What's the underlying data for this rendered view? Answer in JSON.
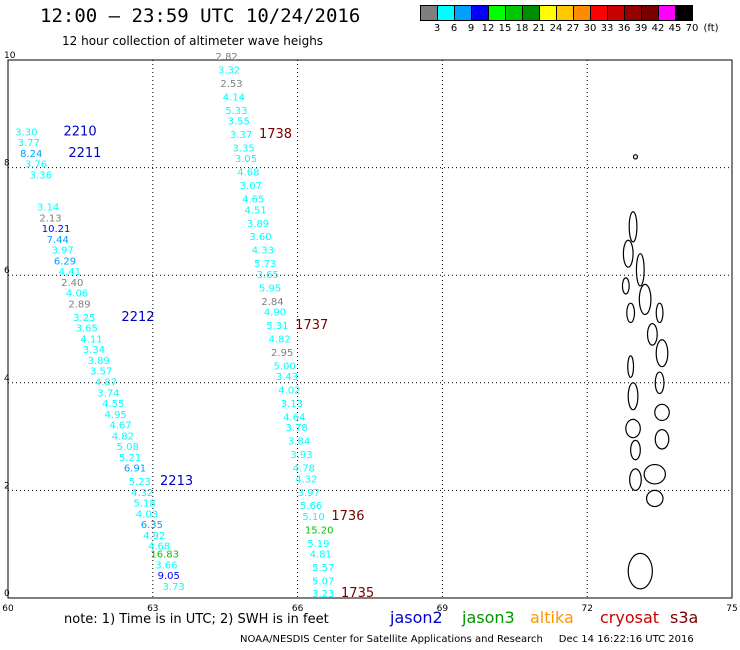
{
  "header": {
    "title": "12:00 – 23:59 UTC 10/24/2016",
    "subtitle": "12 hour collection of altimeter wave heighs"
  },
  "legend": {
    "unit": "(ft)",
    "items": [
      {
        "label": "3",
        "color": "#7f7f7f"
      },
      {
        "label": "6",
        "color": "#00ffff"
      },
      {
        "label": "9",
        "color": "#00a0ff"
      },
      {
        "label": "12",
        "color": "#0000ff"
      },
      {
        "label": "15",
        "color": "#00ff00"
      },
      {
        "label": "18",
        "color": "#00c800"
      },
      {
        "label": "21",
        "color": "#008c00"
      },
      {
        "label": "24",
        "color": "#ffff00"
      },
      {
        "label": "27",
        "color": "#ffc800"
      },
      {
        "label": "30",
        "color": "#ff8c00"
      },
      {
        "label": "33",
        "color": "#ff0000"
      },
      {
        "label": "36",
        "color": "#c80000"
      },
      {
        "label": "39",
        "color": "#960000"
      },
      {
        "label": "42",
        "color": "#780000"
      },
      {
        "label": "45",
        "color": "#ff00ff"
      },
      {
        "label": "70",
        "color": "#000000"
      }
    ]
  },
  "chart_data": {
    "type": "scatter",
    "xlim": [
      60,
      75
    ],
    "ylim": [
      0,
      10
    ],
    "xticks": [
      "60",
      "63",
      "66",
      "69",
      "72",
      "75"
    ],
    "yticks": [
      "0",
      "2",
      "4",
      "6",
      "8",
      "10"
    ],
    "grid": true,
    "passes": [
      {
        "label": "2210",
        "color": "#0000c8",
        "lon": 61.15,
        "lat": 8.6
      },
      {
        "label": "2211",
        "color": "#0000c8",
        "lon": 61.25,
        "lat": 8.2
      },
      {
        "label": "2212",
        "color": "#0000c8",
        "lon": 62.35,
        "lat": 5.15
      },
      {
        "label": "2213",
        "color": "#0000c8",
        "lon": 63.15,
        "lat": 2.1
      },
      {
        "label": "1738",
        "color": "#780000",
        "lon": 65.2,
        "lat": 8.55
      },
      {
        "label": "1737",
        "color": "#780000",
        "lon": 65.95,
        "lat": 5.0
      },
      {
        "label": "1736",
        "color": "#780000",
        "lon": 66.7,
        "lat": 1.45
      },
      {
        "label": "1735",
        "color": "#780000",
        "lon": 66.9,
        "lat": 0.02
      }
    ],
    "tracks": [
      {
        "points": [
          {
            "lon": 60.15,
            "lat": 8.6,
            "v": "3.30"
          },
          {
            "lon": 60.2,
            "lat": 8.4,
            "v": "3.77"
          },
          {
            "lon": 60.25,
            "lat": 8.2,
            "v": "8.24"
          },
          {
            "lon": 60.35,
            "lat": 8.0,
            "v": "3.76"
          },
          {
            "lon": 60.45,
            "lat": 7.8,
            "v": "3.36"
          },
          {
            "lon": 60.6,
            "lat": 7.2,
            "v": "3.14"
          },
          {
            "lon": 60.65,
            "lat": 7.0,
            "v": "2.13"
          },
          {
            "lon": 60.7,
            "lat": 6.8,
            "v": "10.21"
          },
          {
            "lon": 60.8,
            "lat": 6.6,
            "v": "7.44"
          },
          {
            "lon": 60.9,
            "lat": 6.4,
            "v": "3.97"
          },
          {
            "lon": 60.95,
            "lat": 6.2,
            "v": "6.29"
          },
          {
            "lon": 61.05,
            "lat": 6.0,
            "v": "4.41"
          },
          {
            "lon": 61.1,
            "lat": 5.8,
            "v": "2.40"
          },
          {
            "lon": 61.2,
            "lat": 5.6,
            "v": "4.06"
          },
          {
            "lon": 61.25,
            "lat": 5.4,
            "v": "2.89"
          },
          {
            "lon": 61.35,
            "lat": 5.15,
            "v": "3.25"
          },
          {
            "lon": 61.4,
            "lat": 4.95,
            "v": "3.65"
          },
          {
            "lon": 61.5,
            "lat": 4.75,
            "v": "4.11"
          },
          {
            "lon": 61.55,
            "lat": 4.55,
            "v": "3.34"
          },
          {
            "lon": 61.65,
            "lat": 4.35,
            "v": "3.89"
          },
          {
            "lon": 61.7,
            "lat": 4.15,
            "v": "3.57"
          },
          {
            "lon": 61.8,
            "lat": 3.95,
            "v": "4.87"
          },
          {
            "lon": 61.85,
            "lat": 3.75,
            "v": "3.74"
          },
          {
            "lon": 61.95,
            "lat": 3.55,
            "v": "4.55"
          },
          {
            "lon": 62.0,
            "lat": 3.35,
            "v": "4.95"
          },
          {
            "lon": 62.1,
            "lat": 3.15,
            "v": "4.67"
          },
          {
            "lon": 62.15,
            "lat": 2.95,
            "v": "4.82"
          },
          {
            "lon": 62.25,
            "lat": 2.75,
            "v": "5.08"
          },
          {
            "lon": 62.3,
            "lat": 2.55,
            "v": "5.21"
          },
          {
            "lon": 62.4,
            "lat": 2.35,
            "v": "6.91"
          },
          {
            "lon": 62.5,
            "lat": 2.1,
            "v": "5.23"
          },
          {
            "lon": 62.55,
            "lat": 1.9,
            "v": "4.32"
          },
          {
            "lon": 62.6,
            "lat": 1.7,
            "v": "5.18"
          },
          {
            "lon": 62.65,
            "lat": 1.5,
            "v": "4.03"
          },
          {
            "lon": 62.75,
            "lat": 1.3,
            "v": "6.35"
          },
          {
            "lon": 62.8,
            "lat": 1.1,
            "v": "4.92"
          },
          {
            "lon": 62.9,
            "lat": 0.9,
            "v": "4.68"
          },
          {
            "lon": 62.95,
            "lat": 0.75,
            "v": "16.83"
          },
          {
            "lon": 63.05,
            "lat": 0.55,
            "v": "3.66"
          },
          {
            "lon": 63.1,
            "lat": 0.35,
            "v": "9.05"
          },
          {
            "lon": 63.2,
            "lat": 0.15,
            "v": "3.73"
          }
        ]
      },
      {
        "points": [
          {
            "lon": 64.3,
            "lat": 10.0,
            "v": "2.82"
          },
          {
            "lon": 64.35,
            "lat": 9.75,
            "v": "3.32"
          },
          {
            "lon": 64.4,
            "lat": 9.5,
            "v": "2.53"
          },
          {
            "lon": 64.45,
            "lat": 9.25,
            "v": "4.14"
          },
          {
            "lon": 64.5,
            "lat": 9.0,
            "v": "5.33"
          },
          {
            "lon": 64.55,
            "lat": 8.8,
            "v": "3.55"
          },
          {
            "lon": 64.6,
            "lat": 8.55,
            "v": "3.37"
          },
          {
            "lon": 64.65,
            "lat": 8.3,
            "v": "3.35"
          },
          {
            "lon": 64.7,
            "lat": 8.1,
            "v": "3.05"
          },
          {
            "lon": 64.75,
            "lat": 7.85,
            "v": "4.68"
          },
          {
            "lon": 64.8,
            "lat": 7.6,
            "v": "3.07"
          },
          {
            "lon": 64.85,
            "lat": 7.35,
            "v": "4.65"
          },
          {
            "lon": 64.9,
            "lat": 7.15,
            "v": "4.51"
          },
          {
            "lon": 64.95,
            "lat": 6.9,
            "v": "3.89"
          },
          {
            "lon": 65.0,
            "lat": 6.65,
            "v": "3.60"
          },
          {
            "lon": 65.05,
            "lat": 6.4,
            "v": "4.33"
          },
          {
            "lon": 65.1,
            "lat": 6.15,
            "v": "5.73"
          },
          {
            "lon": 65.15,
            "lat": 5.95,
            "v": "3.65"
          },
          {
            "lon": 65.2,
            "lat": 5.7,
            "v": "5.95"
          },
          {
            "lon": 65.25,
            "lat": 5.45,
            "v": "2.84"
          },
          {
            "lon": 65.3,
            "lat": 5.25,
            "v": "4.90"
          },
          {
            "lon": 65.35,
            "lat": 5.0,
            "v": "5.31"
          },
          {
            "lon": 65.4,
            "lat": 4.75,
            "v": "4.82"
          },
          {
            "lon": 65.45,
            "lat": 4.5,
            "v": "2.95"
          },
          {
            "lon": 65.5,
            "lat": 4.25,
            "v": "5.00"
          },
          {
            "lon": 65.55,
            "lat": 4.05,
            "v": "3.43"
          },
          {
            "lon": 65.6,
            "lat": 3.8,
            "v": "4.02"
          },
          {
            "lon": 65.65,
            "lat": 3.55,
            "v": "3.13"
          },
          {
            "lon": 65.7,
            "lat": 3.3,
            "v": "4.64"
          },
          {
            "lon": 65.75,
            "lat": 3.1,
            "v": "3.78"
          },
          {
            "lon": 65.8,
            "lat": 2.85,
            "v": "3.84"
          },
          {
            "lon": 65.85,
            "lat": 2.6,
            "v": "3.93"
          },
          {
            "lon": 65.9,
            "lat": 2.35,
            "v": "4.78"
          },
          {
            "lon": 65.95,
            "lat": 2.15,
            "v": "4.32"
          },
          {
            "lon": 66.0,
            "lat": 1.9,
            "v": "3.97"
          },
          {
            "lon": 66.05,
            "lat": 1.65,
            "v": "5.66"
          },
          {
            "lon": 66.1,
            "lat": 1.45,
            "v": "5.10"
          },
          {
            "lon": 66.15,
            "lat": 1.2,
            "v": "15.20"
          },
          {
            "lon": 66.2,
            "lat": 0.95,
            "v": "5.19"
          },
          {
            "lon": 66.25,
            "lat": 0.75,
            "v": "4.81"
          },
          {
            "lon": 66.3,
            "lat": 0.5,
            "v": "5.57"
          },
          {
            "lon": 66.3,
            "lat": 0.25,
            "v": "5.07"
          },
          {
            "lon": 66.3,
            "lat": 0.02,
            "v": "3.23"
          }
        ]
      }
    ]
  },
  "islands": [
    {
      "lon": 73.0,
      "lat": 8.2,
      "rx": 0.04,
      "ry": 0.04
    },
    {
      "lon": 72.95,
      "lat": 6.9,
      "rx": 0.08,
      "ry": 0.28
    },
    {
      "lon": 72.85,
      "lat": 6.4,
      "rx": 0.1,
      "ry": 0.25
    },
    {
      "lon": 73.1,
      "lat": 6.1,
      "rx": 0.08,
      "ry": 0.3
    },
    {
      "lon": 72.8,
      "lat": 5.8,
      "rx": 0.07,
      "ry": 0.15
    },
    {
      "lon": 73.2,
      "lat": 5.55,
      "rx": 0.12,
      "ry": 0.28
    },
    {
      "lon": 73.5,
      "lat": 5.3,
      "rx": 0.07,
      "ry": 0.18
    },
    {
      "lon": 72.9,
      "lat": 5.3,
      "rx": 0.08,
      "ry": 0.18
    },
    {
      "lon": 73.35,
      "lat": 4.9,
      "rx": 0.1,
      "ry": 0.2
    },
    {
      "lon": 73.55,
      "lat": 4.55,
      "rx": 0.12,
      "ry": 0.25
    },
    {
      "lon": 72.9,
      "lat": 4.3,
      "rx": 0.06,
      "ry": 0.2
    },
    {
      "lon": 73.5,
      "lat": 4.0,
      "rx": 0.09,
      "ry": 0.2
    },
    {
      "lon": 72.95,
      "lat": 3.75,
      "rx": 0.1,
      "ry": 0.25
    },
    {
      "lon": 73.55,
      "lat": 3.45,
      "rx": 0.15,
      "ry": 0.15
    },
    {
      "lon": 72.95,
      "lat": 3.15,
      "rx": 0.15,
      "ry": 0.17
    },
    {
      "lon": 73.55,
      "lat": 2.95,
      "rx": 0.14,
      "ry": 0.18
    },
    {
      "lon": 73.0,
      "lat": 2.75,
      "rx": 0.1,
      "ry": 0.18
    },
    {
      "lon": 73.0,
      "lat": 2.2,
      "rx": 0.12,
      "ry": 0.2
    },
    {
      "lon": 73.4,
      "lat": 2.3,
      "rx": 0.22,
      "ry": 0.18
    },
    {
      "lon": 73.4,
      "lat": 1.85,
      "rx": 0.17,
      "ry": 0.15
    },
    {
      "lon": 73.1,
      "lat": 0.5,
      "rx": 0.25,
      "ry": 0.33
    }
  ],
  "footer": {
    "note": "note:  1) Time is in UTC; 2) SWH is in feet",
    "satellites": [
      {
        "name": "jason2",
        "color": "#0000c8"
      },
      {
        "name": "jason3",
        "color": "#009600"
      },
      {
        "name": "altika",
        "color": "#ff9600"
      },
      {
        "name": "cryosat",
        "color": "#c80000"
      },
      {
        "name": "s3a",
        "color": "#780000"
      }
    ],
    "credit": "NOAA/NESDIS Center for Satellite Applications and Research",
    "timestamp": "Dec 14 16:22:16 UTC 2016"
  }
}
